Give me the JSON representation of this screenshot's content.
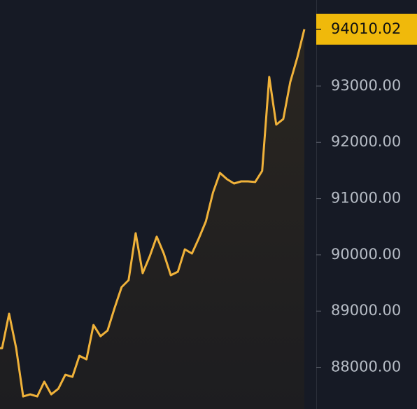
{
  "chart_data": {
    "type": "line",
    "values": [
      88342,
      88953,
      88342,
      87483,
      87520,
      87483,
      87745,
      87520,
      87620,
      87869,
      87832,
      88206,
      88143,
      88753,
      88554,
      88654,
      89052,
      89426,
      89550,
      90385,
      89675,
      89974,
      90323,
      90024,
      89638,
      89700,
      90098,
      90024,
      90298,
      90596,
      91107,
      91456,
      91344,
      91269,
      91306,
      91306,
      91294,
      91493,
      93162,
      92315,
      92415,
      93075,
      93511,
      94010.02
    ],
    "color": "#f0b23a",
    "ylim": [
      87260,
      94530
    ],
    "yticks": [
      {
        "value": 88000,
        "label": "88000.00"
      },
      {
        "value": 89000,
        "label": "89000.00"
      },
      {
        "value": 90000,
        "label": "90000.00"
      },
      {
        "value": 91000,
        "label": "91000.00"
      },
      {
        "value": 92000,
        "label": "92000.00"
      },
      {
        "value": 93000,
        "label": "93000.00"
      }
    ],
    "area": true,
    "last_value_tag": true
  }
}
